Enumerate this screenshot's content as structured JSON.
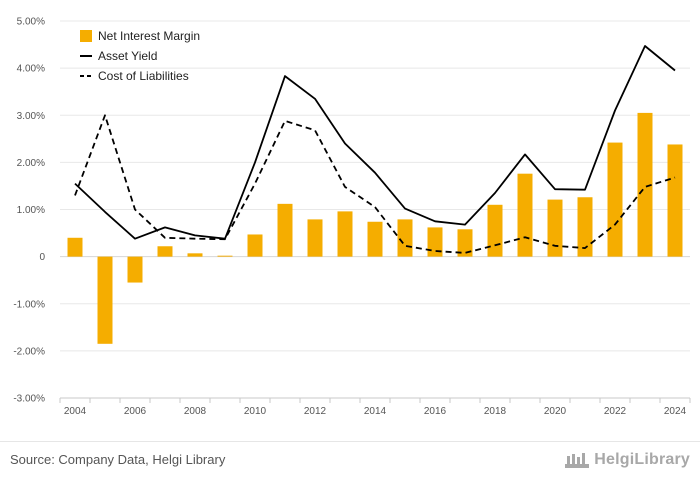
{
  "chart_data": {
    "type": "bar+line",
    "x": [
      "2004",
      "2005",
      "2006",
      "2007",
      "2008",
      "2009",
      "2010",
      "2011",
      "2012",
      "2013",
      "2014",
      "2015",
      "2016",
      "2017",
      "2018",
      "2019",
      "2020",
      "2021",
      "2022",
      "2023",
      "2024"
    ],
    "x_tick_labels": [
      "2004",
      "2006",
      "2008",
      "2010",
      "2012",
      "2014",
      "2016",
      "2018",
      "2020",
      "2022",
      "2024"
    ],
    "y_tick_labels": [
      "5.00%",
      "4.00%",
      "3.00%",
      "2.00%",
      "1.00%",
      "0",
      "-1.00%",
      "-2.00%",
      "-3.00%"
    ],
    "ylim": [
      -3.0,
      5.0
    ],
    "series": [
      {
        "name": "Net Interest Margin",
        "kind": "bar",
        "color": "#f5ad00",
        "values": [
          0.4,
          -1.85,
          -0.55,
          0.22,
          0.07,
          0.02,
          0.47,
          1.12,
          0.79,
          0.96,
          0.74,
          0.79,
          0.62,
          0.58,
          1.1,
          1.76,
          1.21,
          1.26,
          2.42,
          3.05,
          2.38
        ]
      },
      {
        "name": "Asset Yield",
        "kind": "line",
        "style": "solid",
        "color": "#000000",
        "values": [
          1.55,
          0.95,
          0.38,
          0.62,
          0.45,
          0.38,
          2.0,
          3.83,
          3.35,
          2.4,
          1.78,
          1.02,
          0.75,
          0.68,
          1.35,
          2.17,
          1.43,
          1.42,
          3.1,
          4.47,
          3.95
        ]
      },
      {
        "name": "Cost of Liabilities",
        "kind": "line",
        "style": "dashed",
        "color": "#000000",
        "values": [
          1.3,
          3.0,
          1.0,
          0.4,
          0.38,
          0.37,
          1.55,
          2.88,
          2.68,
          1.48,
          1.05,
          0.23,
          0.12,
          0.08,
          0.24,
          0.41,
          0.23,
          0.18,
          0.68,
          1.48,
          1.68
        ]
      }
    ],
    "legend_position": "top-left",
    "grid": true
  },
  "footer": {
    "source": "Source: Company Data, Helgi Library",
    "brand": "HelgiLibrary"
  }
}
